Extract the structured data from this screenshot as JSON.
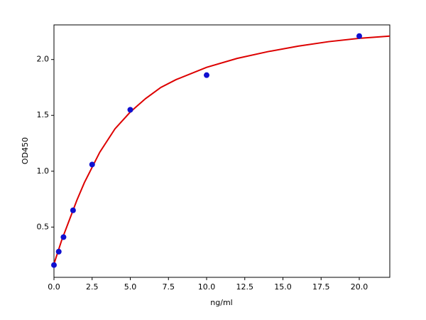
{
  "chart_data": {
    "type": "scatter",
    "xlabel": "ng/ml",
    "ylabel": "OD450",
    "x": [
      0,
      0.3125,
      0.625,
      1.25,
      2.5,
      5,
      10,
      20
    ],
    "values": [
      0.16,
      0.28,
      0.41,
      0.65,
      1.06,
      1.55,
      1.86,
      2.21
    ],
    "color": "#1010d0",
    "curve": {
      "color": "#dd0000",
      "x": [
        0,
        0.5,
        1,
        1.5,
        2,
        3,
        4,
        5,
        6,
        7,
        8,
        10,
        12,
        14,
        16,
        18,
        20,
        22
      ],
      "values": [
        0.17,
        0.38,
        0.56,
        0.74,
        0.9,
        1.17,
        1.38,
        1.53,
        1.65,
        1.75,
        1.82,
        1.93,
        2.01,
        2.07,
        2.12,
        2.16,
        2.19,
        2.21
      ]
    },
    "xlim": [
      0,
      22
    ],
    "ylim": [
      0.05,
      2.31
    ],
    "xticks": [
      {
        "value": 0,
        "label": "0.0"
      },
      2.5,
      {
        "value": 5,
        "label": "5.0"
      },
      7.5,
      {
        "value": 10,
        "label": "10.0"
      },
      12.5,
      {
        "value": 15,
        "label": "15.0"
      },
      17.5,
      {
        "value": 20,
        "label": "20.0"
      }
    ],
    "yticks": [
      0.5,
      {
        "value": 1,
        "label": "1.0"
      },
      1.5,
      {
        "value": 2,
        "label": "2.0"
      }
    ],
    "grid": false
  }
}
